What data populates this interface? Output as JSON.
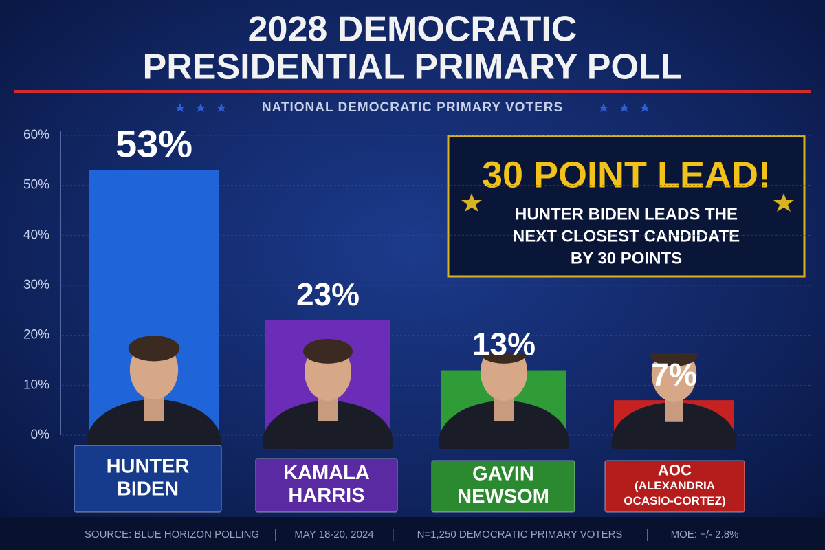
{
  "chart_data": {
    "type": "bar",
    "title": [
      "2028 DEMOCRATIC",
      "PRESIDENTIAL PRIMARY POLL"
    ],
    "subtitle": "NATIONAL DEMOCRATIC PRIMARY VOTERS",
    "categories": [
      [
        "HUNTER",
        "BIDEN"
      ],
      [
        "KAMALA",
        "HARRIS"
      ],
      [
        "GAVIN",
        "NEWSOM"
      ],
      [
        "AOC",
        "(ALEXANDRIA",
        "OCASIO-CORTEZ)"
      ]
    ],
    "values": [
      53,
      23,
      13,
      7
    ],
    "value_labels": [
      "53%",
      "23%",
      "13%",
      "7%"
    ],
    "colors": [
      "#1f64d8",
      "#6b2db8",
      "#2f9c37",
      "#c62222"
    ],
    "ylim": [
      0,
      60
    ],
    "yticks": [
      {
        "value": 0,
        "label": "0%"
      },
      {
        "value": 10,
        "label": "10%"
      },
      {
        "value": 20,
        "label": "20%"
      },
      {
        "value": 30,
        "label": "30%"
      },
      {
        "value": 40,
        "label": "40%"
      },
      {
        "value": 50,
        "label": "50%"
      },
      {
        "value": 60,
        "label": "60%"
      }
    ],
    "grid": true,
    "annotation": {
      "headline": "30 POINT LEAD!",
      "lines": [
        "HUNTER BIDEN LEADS THE",
        "NEXT CLOSEST CANDIDATE",
        "BY 30 POINTS"
      ]
    },
    "footer": [
      "SOURCE: BLUE HORIZON POLLING",
      "MAY 18-20, 2024",
      "N=1,250 DEMOCRATIC PRIMARY VOTERS",
      "MOE: +/- 2.8%"
    ]
  }
}
